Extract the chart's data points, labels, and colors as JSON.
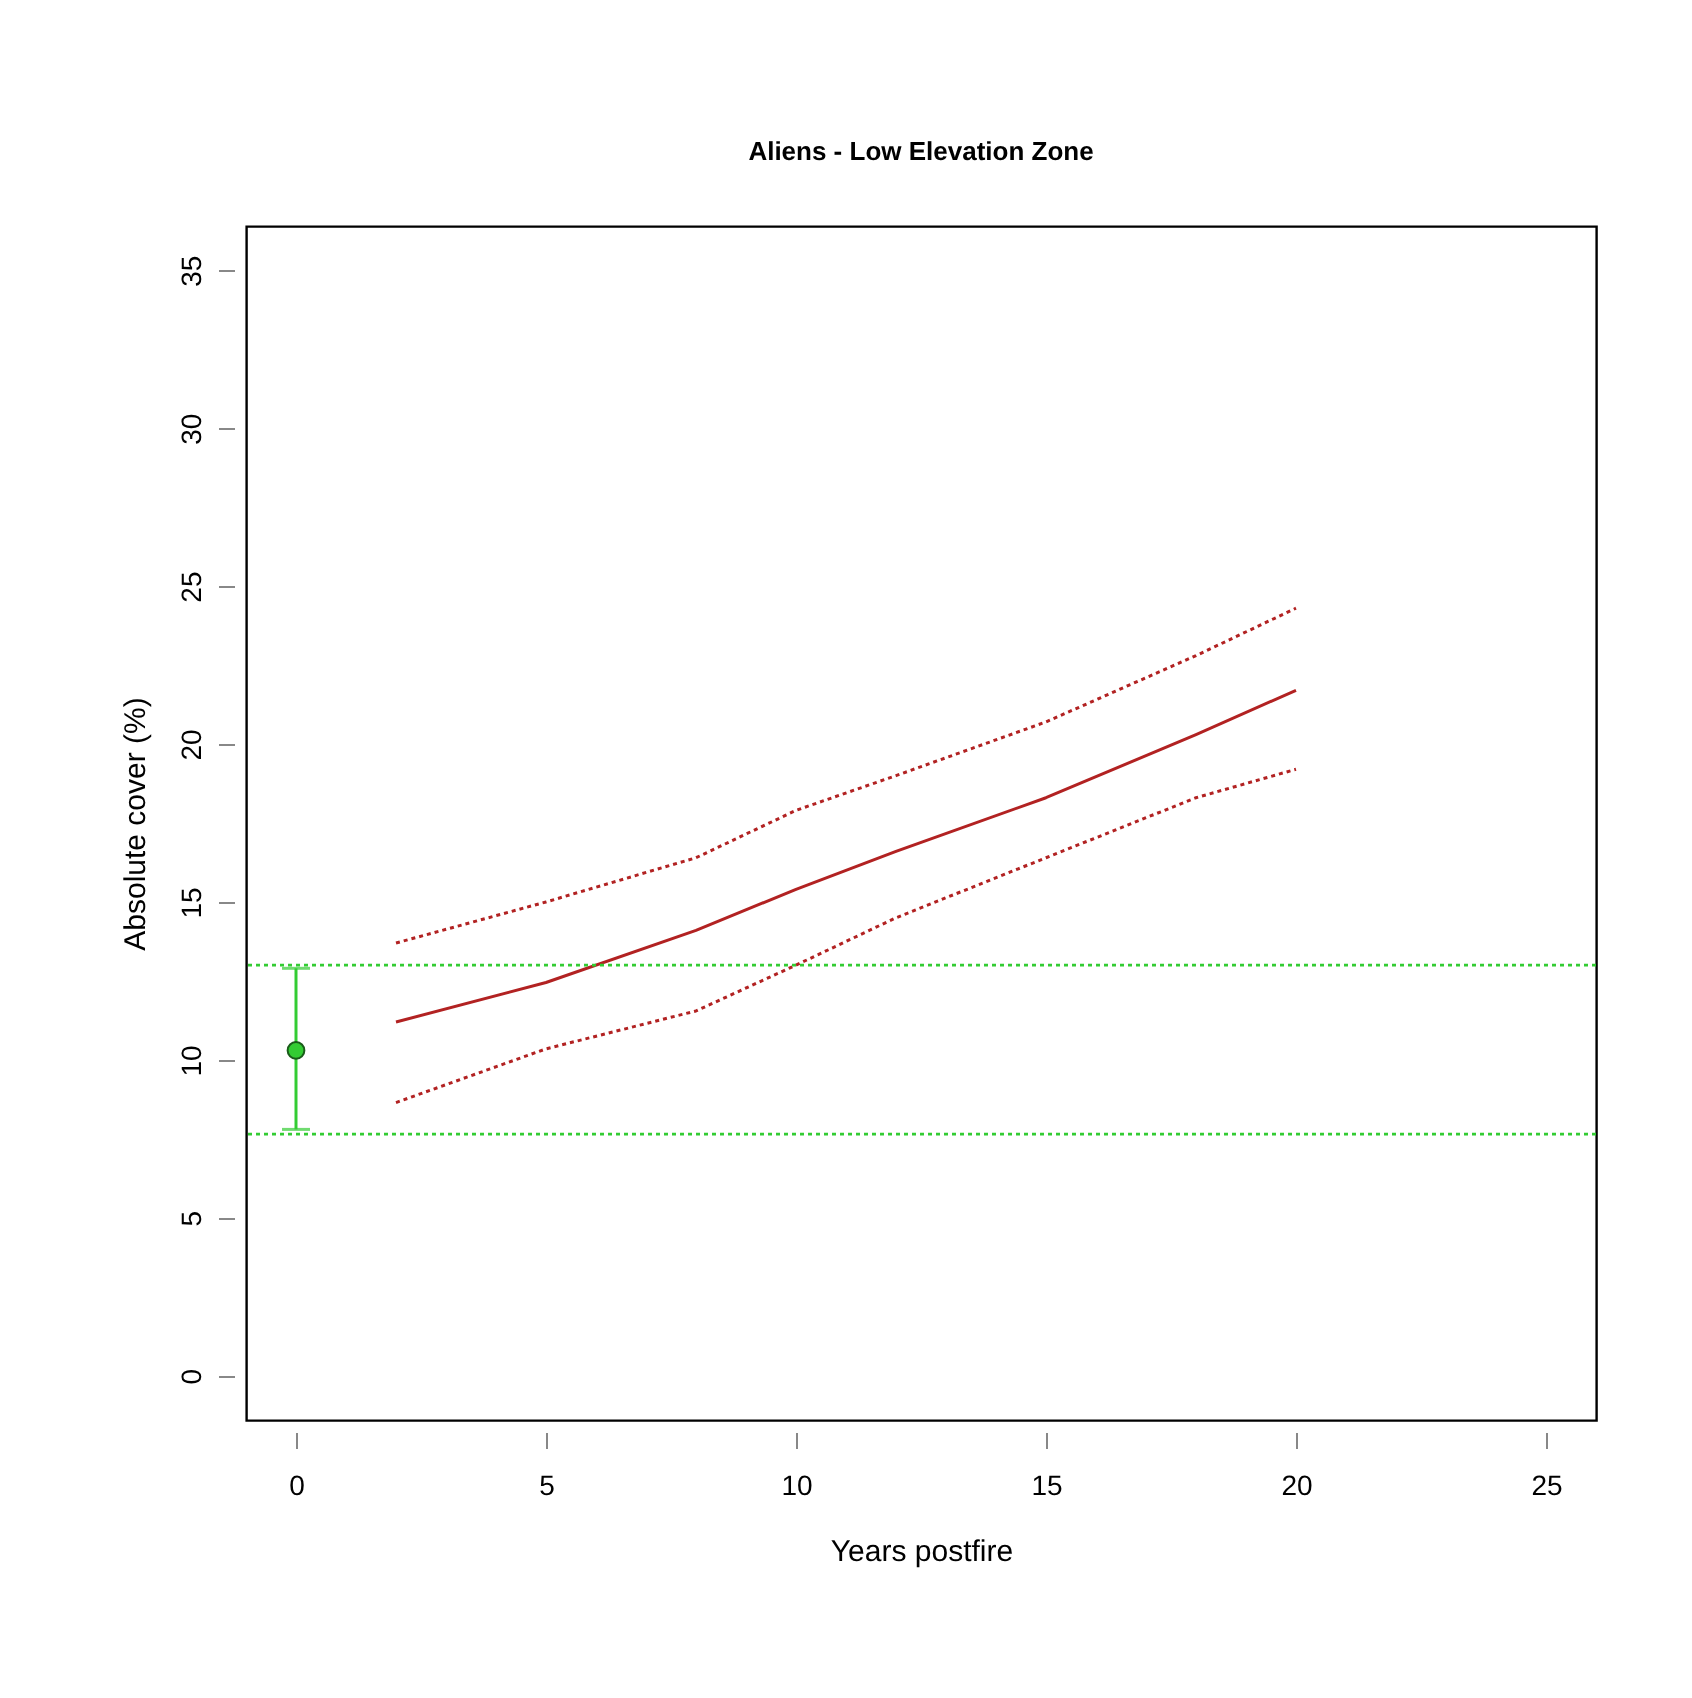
{
  "chart_data": {
    "type": "line",
    "title": "Aliens - Low Elevation Zone",
    "xlabel": "Years postfire",
    "ylabel": "Absolute cover (%)",
    "xlim": [
      -1,
      26
    ],
    "ylim": [
      -1.4,
      36.4
    ],
    "xticks": [
      0,
      5,
      10,
      15,
      20,
      25
    ],
    "yticks": [
      0,
      5,
      10,
      15,
      20,
      25,
      30,
      35
    ],
    "grid": false,
    "series": [
      {
        "color": "#b22222",
        "line_style": "solid",
        "marker": "none",
        "x": [
          2,
          5,
          8,
          10,
          12,
          15,
          18,
          20
        ],
        "values": [
          11.2,
          12.45,
          14.1,
          15.4,
          16.6,
          18.3,
          20.3,
          21.7
        ]
      },
      {
        "color": "#b22222",
        "line_style": "dotted",
        "marker": "none",
        "x": [
          2,
          5,
          8,
          10,
          12,
          15,
          18,
          20
        ],
        "values": [
          13.7,
          15.0,
          16.4,
          17.9,
          19.0,
          20.7,
          22.8,
          24.3
        ]
      },
      {
        "color": "#b22222",
        "line_style": "dotted",
        "marker": "none",
        "x": [
          2,
          5,
          8,
          10,
          12,
          15,
          18,
          20
        ],
        "values": [
          8.65,
          10.35,
          11.55,
          13.0,
          14.5,
          16.4,
          18.3,
          19.2
        ]
      },
      {
        "type": "scatter",
        "color": "#33cc33",
        "marker": "circle",
        "x": [
          0
        ],
        "values": [
          10.3
        ],
        "errors": [
          [
            7.8,
            12.9
          ]
        ]
      }
    ],
    "ref_lines": [
      {
        "axis": "y",
        "value": 13.0,
        "color": "#33cc33",
        "line_style": "dotted"
      },
      {
        "axis": "y",
        "value": 7.65,
        "color": "#33cc33",
        "line_style": "dotted"
      }
    ]
  }
}
